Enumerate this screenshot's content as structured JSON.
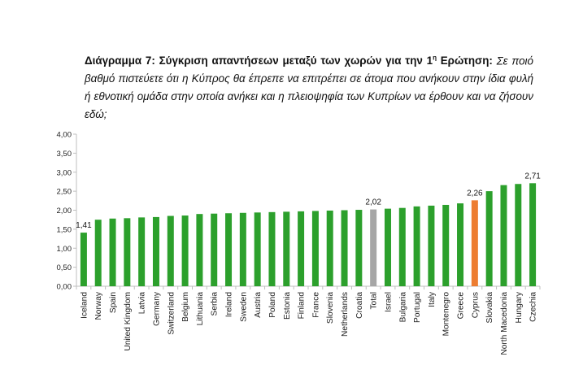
{
  "caption": {
    "label": "Διάγραμμα 7: Σύγκριση απαντήσεων μεταξύ των χωρών για την 1",
    "superscript": "η",
    "label_end": " Ερώτηση:",
    "question": "Σε ποιό βαθμό πιστεύετε ότι η Κύπρος θα έπρεπε να επιτρέπει σε άτομα που ανήκουν στην ίδια φυλή ή εθνοτική ομάδα στην οποία ανήκει και η πλειοψηφία των Κυπρίων να έρθουν και να ζήσουν εδώ;"
  },
  "chart_data": {
    "type": "bar",
    "title": "",
    "xlabel": "",
    "ylabel": "",
    "ylim": [
      0,
      4
    ],
    "yticks": [
      "0,00",
      "0,50",
      "1,00",
      "1,50",
      "2,00",
      "2,50",
      "3,00",
      "3,50",
      "4,00"
    ],
    "grid": false,
    "categories": [
      "Iceland",
      "Norway",
      "Spain",
      "United Kingdom",
      "Latvia",
      "Germany",
      "Switzerland",
      "Belgium",
      "Lithuania",
      "Serbia",
      "Ireland",
      "Sweden",
      "Austria",
      "Poland",
      "Estonia",
      "Finland",
      "France",
      "Slovenia",
      "Netherlands",
      "Croatia",
      "Total",
      "Israel",
      "Bulgaria",
      "Portugal",
      "Italy",
      "Montenegro",
      "Greece",
      "Cyprus",
      "Slovakia",
      "North Macedonia",
      "Hungary",
      "Czechia"
    ],
    "values": [
      1.41,
      1.75,
      1.78,
      1.79,
      1.81,
      1.82,
      1.85,
      1.86,
      1.9,
      1.91,
      1.92,
      1.93,
      1.94,
      1.95,
      1.96,
      1.97,
      1.98,
      1.99,
      2.0,
      2.01,
      2.02,
      2.04,
      2.06,
      2.1,
      2.12,
      2.14,
      2.18,
      2.26,
      2.5,
      2.66,
      2.69,
      2.71
    ],
    "data_labels": {
      "0": "1,41",
      "20": "2,02",
      "27": "2,26",
      "31": "2,71"
    },
    "colors": {
      "default": "#2ca02c",
      "Total": "#a6a6a6",
      "Cyprus": "#ed7d31",
      "axis": "#bfbfbf"
    }
  }
}
